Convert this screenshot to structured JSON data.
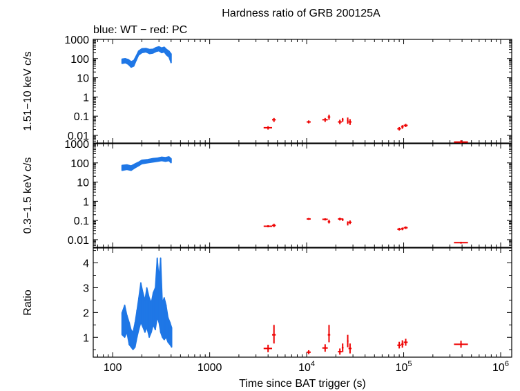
{
  "chart_data": [
    {
      "type": "scatter",
      "title": "Hardness ratio of GRB 200125A",
      "subtitle": "blue: WT − red: PC",
      "ylabel": "1.51−10 keV c/s",
      "yscale": "log",
      "ylim": [
        0.004,
        1000
      ],
      "yticks": [
        "0.01",
        "0.1",
        "1",
        "10",
        "100",
        "1000"
      ],
      "xscale": "log",
      "xlim": [
        63,
        1300000
      ],
      "series": [
        {
          "name": "WT",
          "color": "#1f77e6",
          "style": "band",
          "points": [
            {
              "x": 125,
              "lo": 55,
              "hi": 95
            },
            {
              "x": 135,
              "lo": 60,
              "hi": 100
            },
            {
              "x": 145,
              "lo": 50,
              "hi": 90
            },
            {
              "x": 155,
              "lo": 35,
              "hi": 70
            },
            {
              "x": 165,
              "lo": 40,
              "hi": 80
            },
            {
              "x": 175,
              "lo": 80,
              "hi": 140
            },
            {
              "x": 185,
              "lo": 150,
              "hi": 250
            },
            {
              "x": 200,
              "lo": 200,
              "hi": 330
            },
            {
              "x": 220,
              "lo": 220,
              "hi": 340
            },
            {
              "x": 240,
              "lo": 180,
              "hi": 300
            },
            {
              "x": 260,
              "lo": 190,
              "hi": 310
            },
            {
              "x": 280,
              "lo": 230,
              "hi": 380
            },
            {
              "x": 300,
              "lo": 250,
              "hi": 420
            },
            {
              "x": 320,
              "lo": 200,
              "hi": 360
            },
            {
              "x": 340,
              "lo": 220,
              "hi": 400
            },
            {
              "x": 360,
              "lo": 150,
              "hi": 300
            },
            {
              "x": 380,
              "lo": 120,
              "hi": 250
            },
            {
              "x": 400,
              "lo": 60,
              "hi": 180
            }
          ]
        },
        {
          "name": "PC",
          "color": "#ee0000",
          "style": "errorbar",
          "points": [
            {
              "x": 4000,
              "xlo": 3600,
              "xhi": 4400,
              "y": 0.025,
              "ylo": 0.02,
              "yhi": 0.03
            },
            {
              "x": 4600,
              "xlo": 4400,
              "xhi": 4800,
              "y": 0.065,
              "ylo": 0.05,
              "yhi": 0.08
            },
            {
              "x": 10500,
              "xlo": 10000,
              "xhi": 11000,
              "y": 0.05,
              "ylo": 0.042,
              "yhi": 0.06
            },
            {
              "x": 15500,
              "xlo": 14500,
              "xhi": 16500,
              "y": 0.065,
              "ylo": 0.05,
              "yhi": 0.08
            },
            {
              "x": 17000,
              "xlo": 16500,
              "xhi": 17500,
              "y": 0.09,
              "ylo": 0.065,
              "yhi": 0.12
            },
            {
              "x": 22000,
              "xlo": 21000,
              "xhi": 23000,
              "y": 0.05,
              "ylo": 0.038,
              "yhi": 0.065
            },
            {
              "x": 23500,
              "xlo": 23000,
              "xhi": 24000,
              "y": 0.065,
              "ylo": 0.05,
              "yhi": 0.08
            },
            {
              "x": 26500,
              "xlo": 26000,
              "xhi": 27000,
              "y": 0.06,
              "ylo": 0.04,
              "yhi": 0.085
            },
            {
              "x": 28000,
              "xlo": 27000,
              "xhi": 29000,
              "y": 0.05,
              "ylo": 0.035,
              "yhi": 0.07
            },
            {
              "x": 90000,
              "xlo": 86000,
              "xhi": 94000,
              "y": 0.022,
              "ylo": 0.018,
              "yhi": 0.027
            },
            {
              "x": 97000,
              "xlo": 94000,
              "xhi": 100000,
              "y": 0.028,
              "ylo": 0.022,
              "yhi": 0.034
            },
            {
              "x": 105000,
              "xlo": 100000,
              "xhi": 110000,
              "y": 0.033,
              "ylo": 0.027,
              "yhi": 0.04
            },
            {
              "x": 390000,
              "xlo": 330000,
              "xhi": 460000,
              "y": 0.0045,
              "ylo": 0.0038,
              "yhi": 0.0055
            }
          ]
        }
      ]
    },
    {
      "type": "scatter",
      "ylabel": "0.3−1.5 keV c/s",
      "yscale": "log",
      "ylim": [
        0.004,
        1000
      ],
      "yticks": [
        "0.01",
        "0.1",
        "1",
        "10",
        "100",
        "1000"
      ],
      "xscale": "log",
      "xlim": [
        63,
        1300000
      ],
      "series": [
        {
          "name": "WT",
          "color": "#1f77e6",
          "style": "band",
          "points": [
            {
              "x": 125,
              "lo": 40,
              "hi": 75
            },
            {
              "x": 140,
              "lo": 45,
              "hi": 80
            },
            {
              "x": 155,
              "lo": 40,
              "hi": 70
            },
            {
              "x": 170,
              "lo": 55,
              "hi": 90
            },
            {
              "x": 185,
              "lo": 70,
              "hi": 110
            },
            {
              "x": 200,
              "lo": 90,
              "hi": 140
            },
            {
              "x": 230,
              "lo": 100,
              "hi": 150
            },
            {
              "x": 260,
              "lo": 110,
              "hi": 170
            },
            {
              "x": 290,
              "lo": 120,
              "hi": 180
            },
            {
              "x": 320,
              "lo": 130,
              "hi": 200
            },
            {
              "x": 350,
              "lo": 120,
              "hi": 190
            },
            {
              "x": 380,
              "lo": 130,
              "hi": 210
            },
            {
              "x": 400,
              "lo": 100,
              "hi": 170
            }
          ]
        },
        {
          "name": "PC",
          "color": "#ee0000",
          "style": "errorbar",
          "points": [
            {
              "x": 4000,
              "xlo": 3600,
              "xhi": 4400,
              "y": 0.05,
              "ylo": 0.044,
              "yhi": 0.057
            },
            {
              "x": 4600,
              "xlo": 4400,
              "xhi": 4800,
              "y": 0.055,
              "ylo": 0.045,
              "yhi": 0.068
            },
            {
              "x": 10500,
              "xlo": 10000,
              "xhi": 11000,
              "y": 0.12,
              "ylo": 0.108,
              "yhi": 0.135
            },
            {
              "x": 15500,
              "xlo": 14500,
              "xhi": 16500,
              "y": 0.115,
              "ylo": 0.1,
              "yhi": 0.13
            },
            {
              "x": 17000,
              "xlo": 16500,
              "xhi": 17500,
              "y": 0.085,
              "ylo": 0.07,
              "yhi": 0.11
            },
            {
              "x": 22000,
              "xlo": 21000,
              "xhi": 23000,
              "y": 0.12,
              "ylo": 0.1,
              "yhi": 0.14
            },
            {
              "x": 23500,
              "xlo": 23000,
              "xhi": 24000,
              "y": 0.11,
              "ylo": 0.095,
              "yhi": 0.13
            },
            {
              "x": 26500,
              "xlo": 26000,
              "xhi": 27000,
              "y": 0.07,
              "ylo": 0.055,
              "yhi": 0.09
            },
            {
              "x": 28000,
              "xlo": 27000,
              "xhi": 29000,
              "y": 0.08,
              "ylo": 0.065,
              "yhi": 0.1
            },
            {
              "x": 90000,
              "xlo": 86000,
              "xhi": 94000,
              "y": 0.035,
              "ylo": 0.03,
              "yhi": 0.041
            },
            {
              "x": 97000,
              "xlo": 94000,
              "xhi": 100000,
              "y": 0.037,
              "ylo": 0.031,
              "yhi": 0.043
            },
            {
              "x": 105000,
              "xlo": 100000,
              "xhi": 110000,
              "y": 0.042,
              "ylo": 0.036,
              "yhi": 0.049
            },
            {
              "x": 390000,
              "xlo": 330000,
              "xhi": 460000,
              "y": 0.007,
              "ylo": 0.0062,
              "yhi": 0.0078
            }
          ]
        }
      ]
    },
    {
      "type": "scatter",
      "ylabel": "Ratio",
      "xlabel": "Time since BAT trigger (s)",
      "yscale": "linear",
      "ylim": [
        0.2,
        4.6
      ],
      "yticks": [
        "1",
        "2",
        "3",
        "4"
      ],
      "xscale": "log",
      "xlim": [
        63,
        1300000
      ],
      "xtick_labels": [
        {
          "value": 100,
          "base": "100",
          "exp": ""
        },
        {
          "value": 1000,
          "base": "1000",
          "exp": ""
        },
        {
          "value": 10000,
          "base": "10",
          "exp": "4"
        },
        {
          "value": 100000,
          "base": "10",
          "exp": "5"
        },
        {
          "value": 1000000,
          "base": "10",
          "exp": "6"
        }
      ],
      "series": [
        {
          "name": "WT",
          "color": "#1f77e6",
          "style": "band",
          "points": [
            {
              "x": 125,
              "lo": 1.1,
              "hi": 2.0
            },
            {
              "x": 133,
              "lo": 1.0,
              "hi": 2.3
            },
            {
              "x": 140,
              "lo": 1.2,
              "hi": 1.9
            },
            {
              "x": 148,
              "lo": 0.7,
              "hi": 1.6
            },
            {
              "x": 155,
              "lo": 0.6,
              "hi": 1.3
            },
            {
              "x": 162,
              "lo": 0.5,
              "hi": 1.2
            },
            {
              "x": 170,
              "lo": 0.6,
              "hi": 1.6
            },
            {
              "x": 178,
              "lo": 1.0,
              "hi": 2.1
            },
            {
              "x": 186,
              "lo": 1.3,
              "hi": 2.6
            },
            {
              "x": 195,
              "lo": 1.6,
              "hi": 3.2
            },
            {
              "x": 205,
              "lo": 1.4,
              "hi": 2.8
            },
            {
              "x": 215,
              "lo": 1.2,
              "hi": 2.5
            },
            {
              "x": 225,
              "lo": 1.4,
              "hi": 3.0
            },
            {
              "x": 238,
              "lo": 1.0,
              "hi": 2.6
            },
            {
              "x": 250,
              "lo": 1.2,
              "hi": 2.4
            },
            {
              "x": 262,
              "lo": 1.5,
              "hi": 2.8
            },
            {
              "x": 275,
              "lo": 1.3,
              "hi": 3.0
            },
            {
              "x": 288,
              "lo": 1.8,
              "hi": 4.2
            },
            {
              "x": 300,
              "lo": 1.6,
              "hi": 3.4
            },
            {
              "x": 312,
              "lo": 1.2,
              "hi": 4.2
            },
            {
              "x": 325,
              "lo": 1.0,
              "hi": 2.4
            },
            {
              "x": 340,
              "lo": 0.9,
              "hi": 2.6
            },
            {
              "x": 355,
              "lo": 1.0,
              "hi": 2.3
            },
            {
              "x": 372,
              "lo": 0.8,
              "hi": 1.8
            },
            {
              "x": 390,
              "lo": 0.7,
              "hi": 1.6
            },
            {
              "x": 405,
              "lo": 0.6,
              "hi": 1.4
            }
          ]
        },
        {
          "name": "PC",
          "color": "#ee0000",
          "style": "errorbar",
          "points": [
            {
              "x": 4000,
              "xlo": 3600,
              "xhi": 4400,
              "y": 0.55,
              "ylo": 0.4,
              "yhi": 0.7
            },
            {
              "x": 4600,
              "xlo": 4400,
              "xhi": 4800,
              "y": 1.1,
              "ylo": 0.75,
              "yhi": 1.5
            },
            {
              "x": 10500,
              "xlo": 10000,
              "xhi": 11000,
              "y": 0.4,
              "ylo": 0.32,
              "yhi": 0.48
            },
            {
              "x": 15500,
              "xlo": 14500,
              "xhi": 16500,
              "y": 0.57,
              "ylo": 0.42,
              "yhi": 0.72
            },
            {
              "x": 17000,
              "xlo": 16500,
              "xhi": 17500,
              "y": 1.1,
              "ylo": 0.8,
              "yhi": 1.5
            },
            {
              "x": 22000,
              "xlo": 21000,
              "xhi": 23000,
              "y": 0.42,
              "ylo": 0.3,
              "yhi": 0.55
            },
            {
              "x": 23500,
              "xlo": 23000,
              "xhi": 24000,
              "y": 0.58,
              "ylo": 0.4,
              "yhi": 0.75
            },
            {
              "x": 26500,
              "xlo": 26000,
              "xhi": 27000,
              "y": 0.85,
              "ylo": 0.6,
              "yhi": 1.1
            },
            {
              "x": 28000,
              "xlo": 27000,
              "xhi": 29000,
              "y": 0.55,
              "ylo": 0.35,
              "yhi": 0.75
            },
            {
              "x": 90000,
              "xlo": 86000,
              "xhi": 94000,
              "y": 0.68,
              "ylo": 0.55,
              "yhi": 0.82
            },
            {
              "x": 97000,
              "xlo": 94000,
              "xhi": 100000,
              "y": 0.72,
              "ylo": 0.58,
              "yhi": 0.88
            },
            {
              "x": 105000,
              "xlo": 100000,
              "xhi": 110000,
              "y": 0.8,
              "ylo": 0.66,
              "yhi": 0.94
            },
            {
              "x": 390000,
              "xlo": 330000,
              "xhi": 460000,
              "y": 0.72,
              "ylo": 0.58,
              "yhi": 0.86
            }
          ]
        }
      ]
    }
  ]
}
